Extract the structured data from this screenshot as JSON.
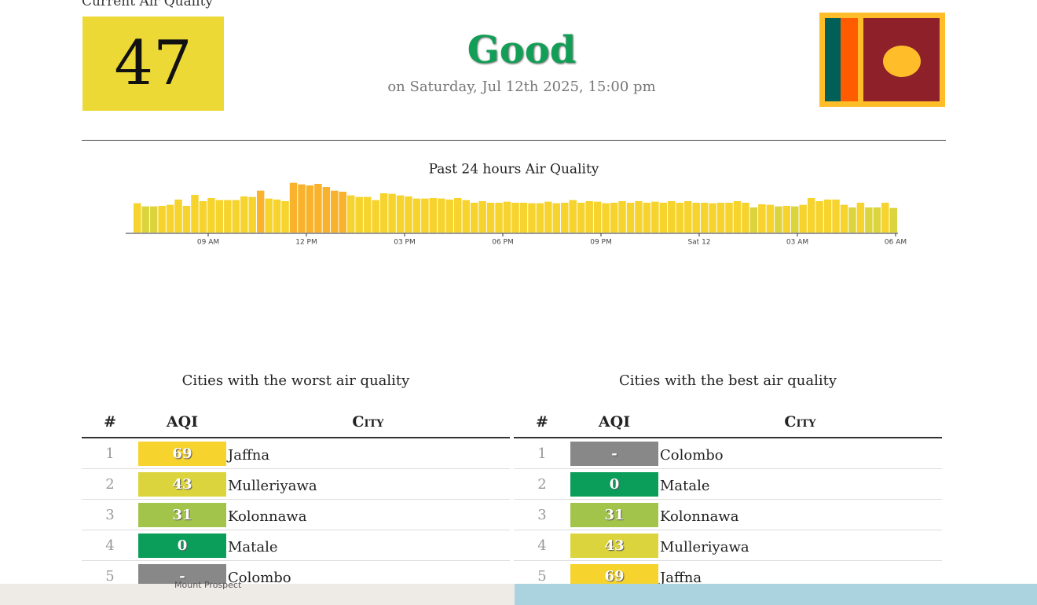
{
  "header": {
    "label": "Current Air Quality",
    "aqi": "47",
    "status": "Good",
    "date": "on Saturday, Jul 12th 2025, 15:00 pm"
  },
  "chart_data": {
    "type": "bar",
    "title": "Past 24 hours Air Quality",
    "values": [
      56,
      50,
      50,
      51,
      53,
      63,
      51,
      72,
      60,
      66,
      62,
      62,
      62,
      69,
      68,
      80,
      65,
      63,
      60,
      95,
      92,
      90,
      93,
      87,
      80,
      78,
      71,
      68,
      68,
      62,
      75,
      74,
      71,
      69,
      65,
      65,
      66,
      65,
      63,
      66,
      62,
      57,
      60,
      57,
      57,
      59,
      57,
      57,
      56,
      56,
      59,
      56,
      57,
      62,
      57,
      60,
      59,
      56,
      57,
      60,
      57,
      60,
      57,
      59,
      57,
      60,
      57,
      60,
      57,
      57,
      56,
      57,
      57,
      60,
      57,
      48,
      54,
      53,
      50,
      51,
      50,
      53,
      66,
      60,
      63,
      63,
      53,
      48,
      57,
      48,
      48,
      57,
      47
    ],
    "xtick_labels": [
      "09 AM",
      "12 PM",
      "03 PM",
      "06 PM",
      "09 PM",
      "Sat 12",
      "03 AM",
      "06 AM"
    ]
  },
  "worst": {
    "title": "Cities with the worst air quality",
    "columns": [
      "#",
      "AQI",
      "City"
    ],
    "rows": [
      [
        "1",
        "69",
        "Jaffna"
      ],
      [
        "2",
        "43",
        "Mulleriyawa"
      ],
      [
        "3",
        "31",
        "Kolonnawa"
      ],
      [
        "4",
        "0",
        "Matale"
      ],
      [
        "5",
        "-",
        "Colombo"
      ]
    ]
  },
  "best": {
    "title": "Cities with the best air quality",
    "columns": [
      "#",
      "AQI",
      "City"
    ],
    "rows": [
      [
        "1",
        "-",
        "Colombo"
      ],
      [
        "2",
        "0",
        "Matale"
      ],
      [
        "3",
        "31",
        "Kolonnawa"
      ],
      [
        "4",
        "43",
        "Mulleriyawa"
      ],
      [
        "5",
        "69",
        "Jaffna"
      ]
    ]
  },
  "map": {
    "labels": [
      "Mount Prospect"
    ]
  }
}
